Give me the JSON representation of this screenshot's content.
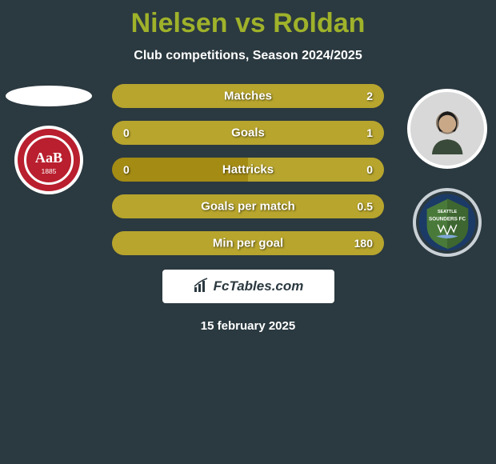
{
  "title_color": "#9fb22a",
  "background_color": "#2b3940",
  "title": "Nielsen vs Roldan",
  "subtitle": "Club competitions, Season 2024/2025",
  "date": "15 february 2025",
  "brand": "FcTables.com",
  "left_player": {
    "name": "Nielsen",
    "crest": "AaB"
  },
  "right_player": {
    "name": "Roldan",
    "crest": "Sounders"
  },
  "stat_colors": {
    "left": "#a38b14",
    "right": "#b7a52d",
    "label": "#ffffff"
  },
  "stats": [
    {
      "label": "Matches",
      "left_val": "",
      "right_val": "2",
      "left_pct": 0,
      "right_pct": 100
    },
    {
      "label": "Goals",
      "left_val": "0",
      "right_val": "1",
      "left_pct": 0,
      "right_pct": 100
    },
    {
      "label": "Hattricks",
      "left_val": "0",
      "right_val": "0",
      "left_pct": 50,
      "right_pct": 50
    },
    {
      "label": "Goals per match",
      "left_val": "",
      "right_val": "0.5",
      "left_pct": 0,
      "right_pct": 100
    },
    {
      "label": "Min per goal",
      "left_val": "",
      "right_val": "180",
      "left_pct": 0,
      "right_pct": 100
    }
  ],
  "crest_colors": {
    "aab_red": "#b91f2e",
    "sounders_green": "#4a7a3a",
    "sounders_blue": "#1b3a66"
  }
}
